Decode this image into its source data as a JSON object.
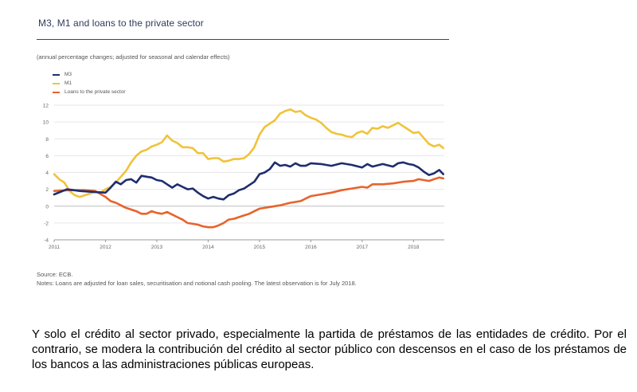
{
  "caption": "Y solo el crédito al sector privado, especialmente la partida de préstamos de las entidades de crédito. Por el contrario, se modera la contribución del crédito al sector público con descensos en el caso de los préstamos de los bancos a las administraciones públicas europeas.",
  "chart_data": {
    "type": "line",
    "title": "M3, M1 and loans to the private sector",
    "subtitle": "(annual percentage changes; adjusted for seasonal and calendar effects)",
    "xlabel": "",
    "ylabel": "",
    "xlim": [
      2011,
      2018.6
    ],
    "ylim": [
      -4,
      12
    ],
    "y_ticks": [
      -4,
      -2,
      0,
      2,
      4,
      6,
      8,
      10,
      12
    ],
    "x_ticks": [
      "2011",
      "2012",
      "2013",
      "2014",
      "2015",
      "2016",
      "2017",
      "2018"
    ],
    "grid": "horizontal",
    "legend": "top-left",
    "series": [
      {
        "name": "M3",
        "color": "#1f2d6e",
        "points": [
          [
            2011.0,
            1.4
          ],
          [
            2011.25,
            2.0
          ],
          [
            2011.5,
            1.8
          ],
          [
            2011.75,
            1.7
          ],
          [
            2012.0,
            1.6
          ],
          [
            2012.1,
            2.2
          ],
          [
            2012.2,
            2.9
          ],
          [
            2012.3,
            2.6
          ],
          [
            2012.4,
            3.1
          ],
          [
            2012.5,
            3.2
          ],
          [
            2012.6,
            2.8
          ],
          [
            2012.7,
            3.6
          ],
          [
            2012.8,
            3.5
          ],
          [
            2012.9,
            3.4
          ],
          [
            2013.0,
            3.1
          ],
          [
            2013.1,
            3.0
          ],
          [
            2013.2,
            2.6
          ],
          [
            2013.3,
            2.2
          ],
          [
            2013.4,
            2.6
          ],
          [
            2013.5,
            2.3
          ],
          [
            2013.6,
            2.0
          ],
          [
            2013.7,
            2.1
          ],
          [
            2013.8,
            1.6
          ],
          [
            2013.9,
            1.2
          ],
          [
            2014.0,
            0.9
          ],
          [
            2014.1,
            1.1
          ],
          [
            2014.2,
            0.9
          ],
          [
            2014.3,
            0.8
          ],
          [
            2014.4,
            1.3
          ],
          [
            2014.5,
            1.5
          ],
          [
            2014.6,
            1.9
          ],
          [
            2014.7,
            2.1
          ],
          [
            2014.8,
            2.5
          ],
          [
            2014.9,
            2.9
          ],
          [
            2015.0,
            3.8
          ],
          [
            2015.1,
            4.0
          ],
          [
            2015.2,
            4.4
          ],
          [
            2015.3,
            5.2
          ],
          [
            2015.4,
            4.8
          ],
          [
            2015.5,
            4.9
          ],
          [
            2015.6,
            4.7
          ],
          [
            2015.7,
            5.1
          ],
          [
            2015.8,
            4.8
          ],
          [
            2015.9,
            4.8
          ],
          [
            2016.0,
            5.1
          ],
          [
            2016.2,
            5.0
          ],
          [
            2016.4,
            4.8
          ],
          [
            2016.6,
            5.1
          ],
          [
            2016.8,
            4.9
          ],
          [
            2017.0,
            4.6
          ],
          [
            2017.1,
            5.0
          ],
          [
            2017.2,
            4.7
          ],
          [
            2017.4,
            5.0
          ],
          [
            2017.6,
            4.7
          ],
          [
            2017.7,
            5.1
          ],
          [
            2017.8,
            5.2
          ],
          [
            2017.9,
            5.0
          ],
          [
            2018.0,
            4.9
          ],
          [
            2018.1,
            4.6
          ],
          [
            2018.2,
            4.1
          ],
          [
            2018.3,
            3.7
          ],
          [
            2018.4,
            3.9
          ],
          [
            2018.5,
            4.3
          ],
          [
            2018.58,
            3.8
          ]
        ]
      },
      {
        "name": "M1",
        "color": "#f0c33a",
        "points": [
          [
            2011.0,
            3.8
          ],
          [
            2011.1,
            3.2
          ],
          [
            2011.2,
            2.8
          ],
          [
            2011.3,
            1.8
          ],
          [
            2011.4,
            1.3
          ],
          [
            2011.5,
            1.1
          ],
          [
            2011.6,
            1.3
          ],
          [
            2011.7,
            1.5
          ],
          [
            2011.8,
            1.7
          ],
          [
            2011.9,
            1.6
          ],
          [
            2012.0,
            2.0
          ],
          [
            2012.1,
            2.3
          ],
          [
            2012.2,
            2.8
          ],
          [
            2012.3,
            3.5
          ],
          [
            2012.4,
            4.2
          ],
          [
            2012.5,
            5.2
          ],
          [
            2012.6,
            6.0
          ],
          [
            2012.7,
            6.5
          ],
          [
            2012.8,
            6.7
          ],
          [
            2012.9,
            7.1
          ],
          [
            2013.0,
            7.3
          ],
          [
            2013.1,
            7.6
          ],
          [
            2013.2,
            8.4
          ],
          [
            2013.3,
            7.8
          ],
          [
            2013.4,
            7.5
          ],
          [
            2013.5,
            7.0
          ],
          [
            2013.6,
            7.0
          ],
          [
            2013.7,
            6.9
          ],
          [
            2013.8,
            6.3
          ],
          [
            2013.9,
            6.3
          ],
          [
            2014.0,
            5.6
          ],
          [
            2014.1,
            5.7
          ],
          [
            2014.2,
            5.7
          ],
          [
            2014.3,
            5.3
          ],
          [
            2014.4,
            5.4
          ],
          [
            2014.5,
            5.6
          ],
          [
            2014.6,
            5.6
          ],
          [
            2014.7,
            5.7
          ],
          [
            2014.8,
            6.2
          ],
          [
            2014.9,
            7.0
          ],
          [
            2015.0,
            8.5
          ],
          [
            2015.1,
            9.4
          ],
          [
            2015.2,
            9.8
          ],
          [
            2015.3,
            10.2
          ],
          [
            2015.4,
            11.0
          ],
          [
            2015.5,
            11.3
          ],
          [
            2015.6,
            11.5
          ],
          [
            2015.7,
            11.2
          ],
          [
            2015.8,
            11.3
          ],
          [
            2015.9,
            10.8
          ],
          [
            2016.0,
            10.5
          ],
          [
            2016.1,
            10.3
          ],
          [
            2016.2,
            9.9
          ],
          [
            2016.3,
            9.3
          ],
          [
            2016.4,
            8.8
          ],
          [
            2016.5,
            8.6
          ],
          [
            2016.6,
            8.5
          ],
          [
            2016.7,
            8.3
          ],
          [
            2016.8,
            8.2
          ],
          [
            2016.9,
            8.7
          ],
          [
            2017.0,
            8.9
          ],
          [
            2017.1,
            8.6
          ],
          [
            2017.2,
            9.3
          ],
          [
            2017.3,
            9.2
          ],
          [
            2017.4,
            9.5
          ],
          [
            2017.5,
            9.3
          ],
          [
            2017.6,
            9.6
          ],
          [
            2017.7,
            9.9
          ],
          [
            2017.8,
            9.5
          ],
          [
            2017.9,
            9.1
          ],
          [
            2018.0,
            8.7
          ],
          [
            2018.1,
            8.8
          ],
          [
            2018.2,
            8.1
          ],
          [
            2018.3,
            7.4
          ],
          [
            2018.4,
            7.1
          ],
          [
            2018.5,
            7.3
          ],
          [
            2018.58,
            6.9
          ]
        ]
      },
      {
        "name": "Loans to the private sector",
        "color": "#e8632b",
        "points": [
          [
            2011.0,
            1.8
          ],
          [
            2011.3,
            1.9
          ],
          [
            2011.6,
            1.9
          ],
          [
            2011.8,
            1.8
          ],
          [
            2012.0,
            1.1
          ],
          [
            2012.1,
            0.6
          ],
          [
            2012.2,
            0.4
          ],
          [
            2012.3,
            0.1
          ],
          [
            2012.4,
            -0.2
          ],
          [
            2012.5,
            -0.4
          ],
          [
            2012.6,
            -0.6
          ],
          [
            2012.7,
            -0.9
          ],
          [
            2012.8,
            -0.9
          ],
          [
            2012.9,
            -0.6
          ],
          [
            2013.0,
            -0.8
          ],
          [
            2013.1,
            -0.9
          ],
          [
            2013.2,
            -0.7
          ],
          [
            2013.3,
            -1.0
          ],
          [
            2013.4,
            -1.3
          ],
          [
            2013.5,
            -1.6
          ],
          [
            2013.6,
            -2.0
          ],
          [
            2013.7,
            -2.1
          ],
          [
            2013.8,
            -2.2
          ],
          [
            2013.9,
            -2.4
          ],
          [
            2014.0,
            -2.5
          ],
          [
            2014.1,
            -2.5
          ],
          [
            2014.2,
            -2.3
          ],
          [
            2014.3,
            -2.0
          ],
          [
            2014.4,
            -1.6
          ],
          [
            2014.5,
            -1.5
          ],
          [
            2014.6,
            -1.3
          ],
          [
            2014.7,
            -1.1
          ],
          [
            2014.8,
            -0.9
          ],
          [
            2014.9,
            -0.6
          ],
          [
            2015.0,
            -0.3
          ],
          [
            2015.2,
            -0.1
          ],
          [
            2015.4,
            0.1
          ],
          [
            2015.6,
            0.4
          ],
          [
            2015.8,
            0.6
          ],
          [
            2015.9,
            0.9
          ],
          [
            2016.0,
            1.2
          ],
          [
            2016.2,
            1.4
          ],
          [
            2016.4,
            1.6
          ],
          [
            2016.6,
            1.9
          ],
          [
            2016.8,
            2.1
          ],
          [
            2017.0,
            2.3
          ],
          [
            2017.1,
            2.2
          ],
          [
            2017.2,
            2.6
          ],
          [
            2017.4,
            2.6
          ],
          [
            2017.6,
            2.7
          ],
          [
            2017.8,
            2.9
          ],
          [
            2018.0,
            3.0
          ],
          [
            2018.1,
            3.2
          ],
          [
            2018.2,
            3.1
          ],
          [
            2018.3,
            3.0
          ],
          [
            2018.4,
            3.2
          ],
          [
            2018.5,
            3.4
          ],
          [
            2018.58,
            3.3
          ]
        ]
      }
    ]
  },
  "notes": {
    "source": "Source: ECB.",
    "notes_text": "Notes: Loans are adjusted for loan sales, securitisation and notional cash pooling. The latest observation is for July 2018."
  }
}
